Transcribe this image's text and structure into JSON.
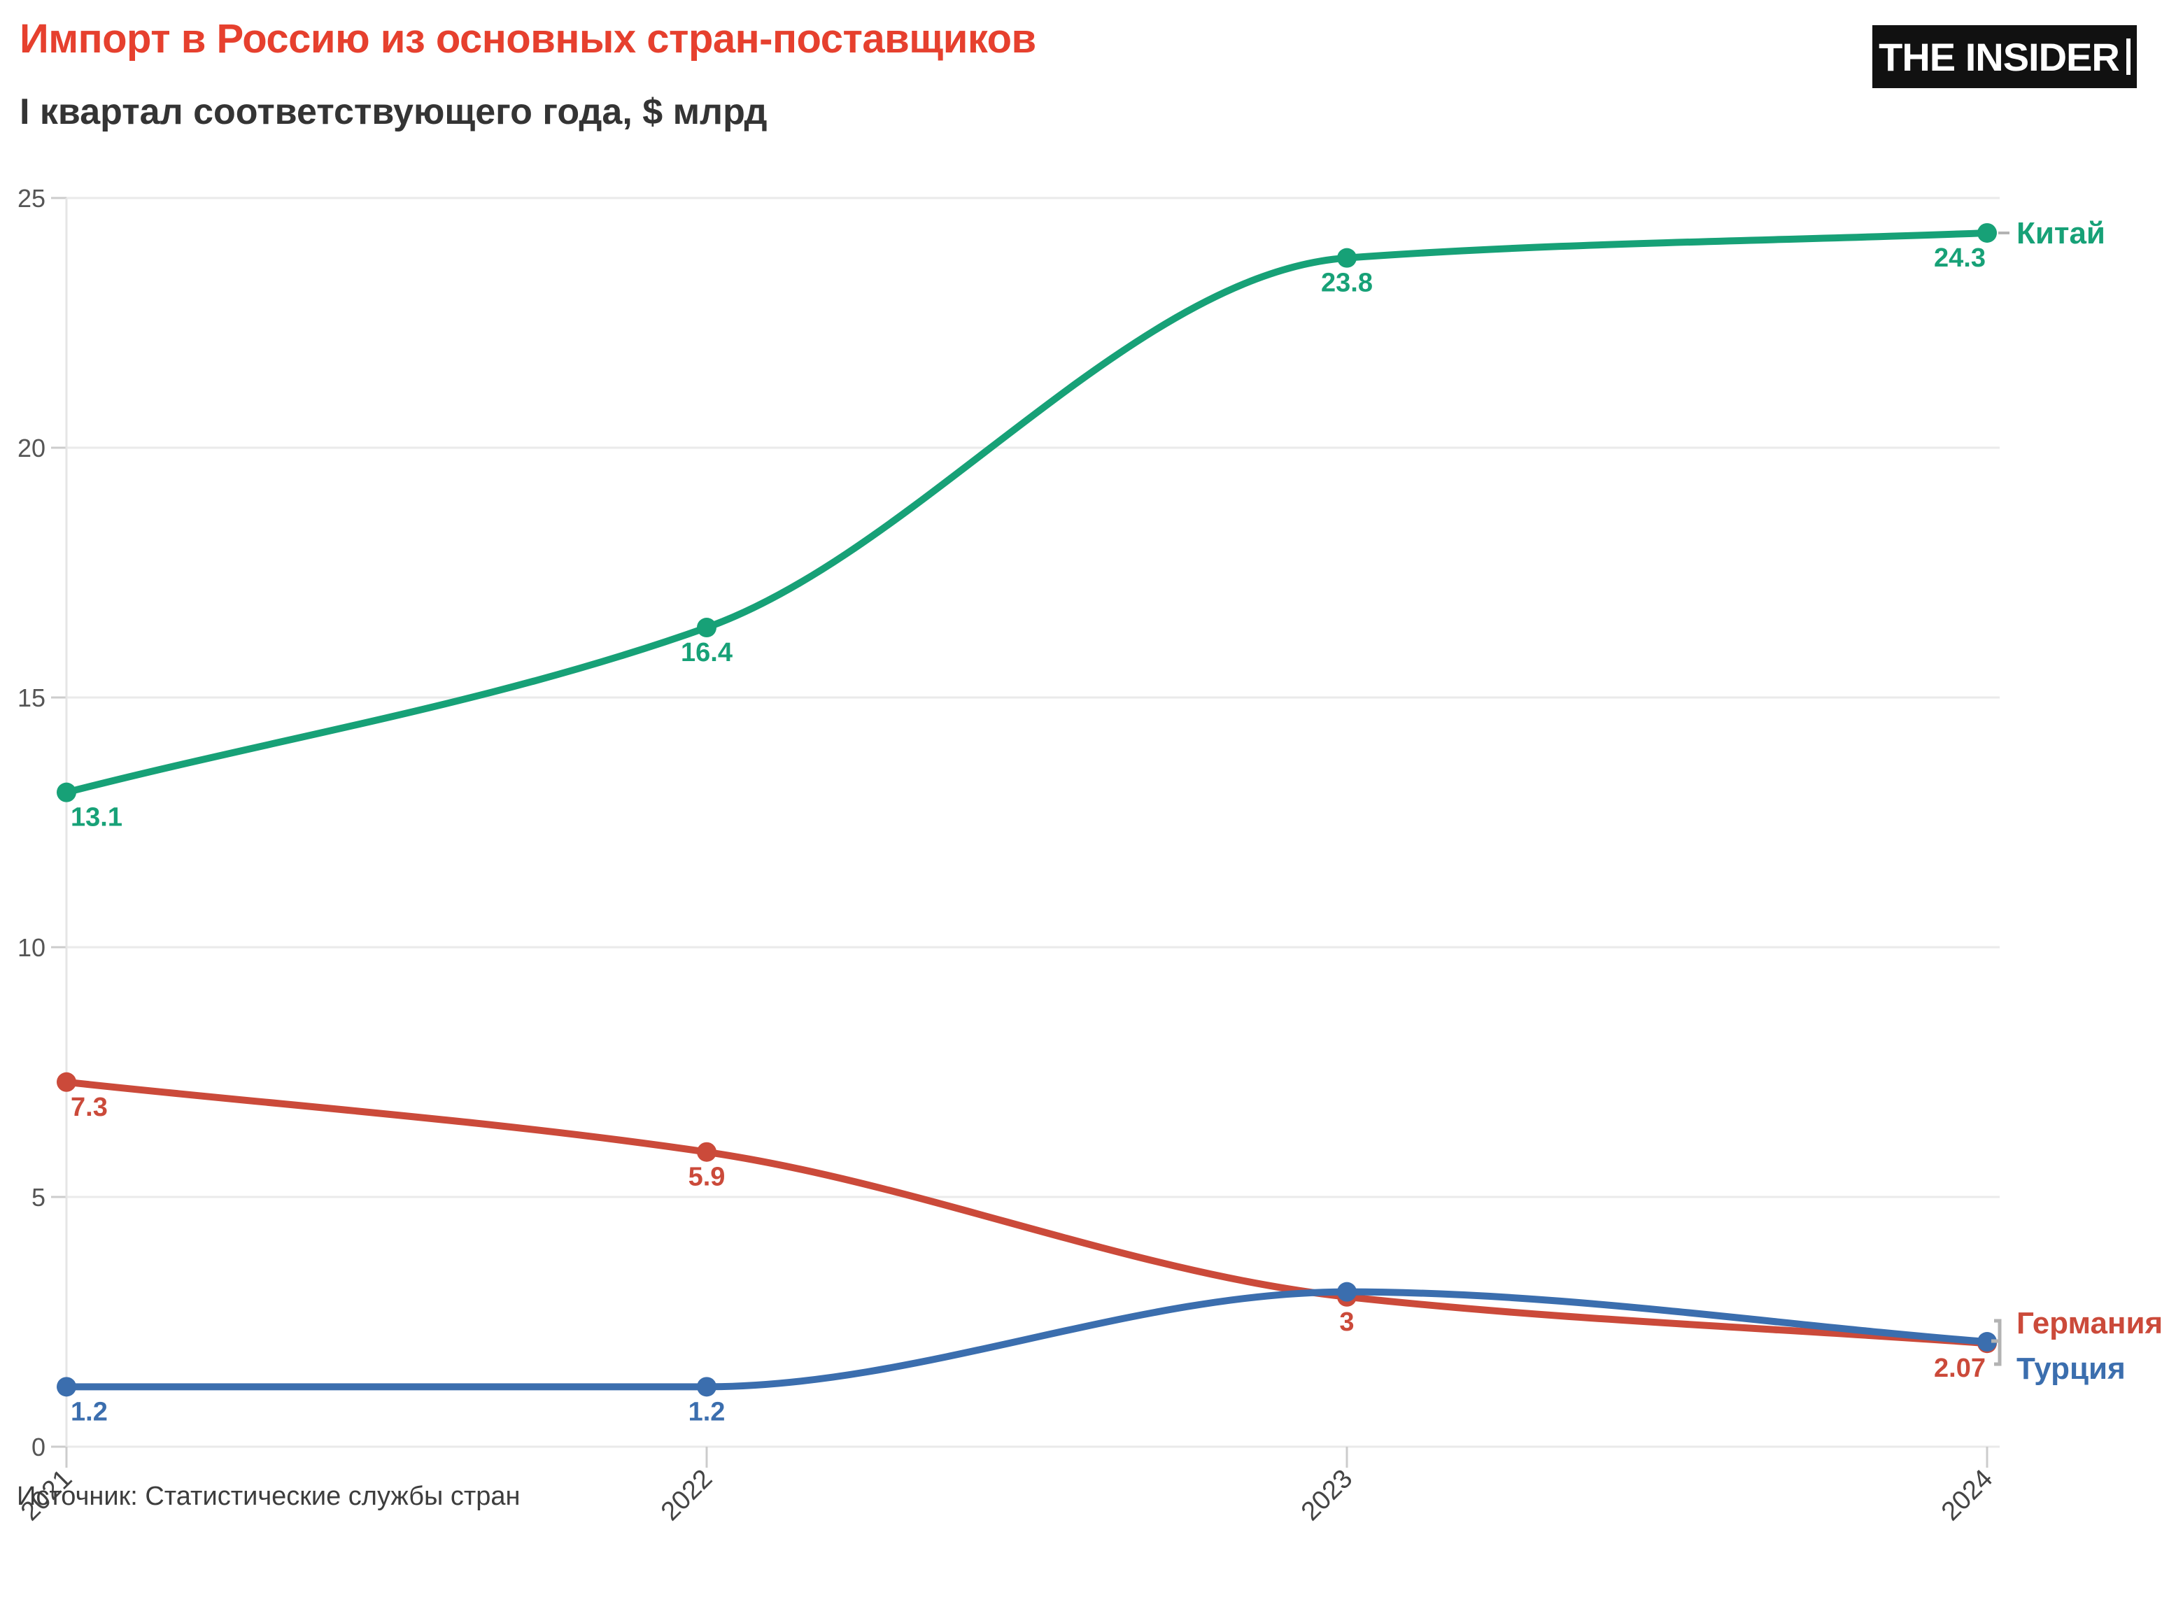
{
  "header": {
    "title": "Импорт в Россию из основных стран-поставщиков",
    "subtitle": "I квартал соответствующего года, $ млрд",
    "logo": "THE INSIDER"
  },
  "source": "Источник: Статистические службы стран",
  "colors": {
    "title": "#e6402e",
    "subtitle": "#343434",
    "logo_bg": "#111111",
    "logo_text": "#ffffff",
    "grid": "#eaeaea",
    "axis_line": "#e5e5e5",
    "axis_tick": "#cccccc",
    "axis_text": "#555555",
    "year_text": "#444444",
    "leader": "#b3b3b3",
    "source_text": "#3d3d3d"
  },
  "chart_data": {
    "type": "line",
    "title": "Импорт в Россию из основных стран-поставщиков",
    "subtitle": "I квартал соответствующего года, $ млрд",
    "categories": [
      "2021",
      "2022",
      "2023",
      "2024"
    ],
    "series": [
      {
        "name": "Китай",
        "color": "#17a177",
        "values": [
          13.1,
          16.4,
          23.8,
          24.3
        ],
        "point_labels": [
          "13.1",
          "16.4",
          "23.8",
          "24.3"
        ]
      },
      {
        "name": "Германия",
        "color": "#cb4a3a",
        "values": [
          7.3,
          5.9,
          3,
          2.07
        ],
        "point_labels": [
          "7.3",
          "5.9",
          "3",
          "2.07"
        ]
      },
      {
        "name": "Турция",
        "color": "#3b6eae",
        "values": [
          1.2,
          1.2,
          3.1,
          2.1
        ],
        "point_labels": [
          "1.2",
          "1.2",
          null,
          null
        ]
      }
    ],
    "xlabel": "",
    "ylabel": "",
    "ylim": [
      0,
      25
    ],
    "yticks": [
      "0",
      "5",
      "10",
      "15",
      "20",
      "25"
    ],
    "grid": true,
    "legend_position": "right-end-labels",
    "smooth": true
  }
}
